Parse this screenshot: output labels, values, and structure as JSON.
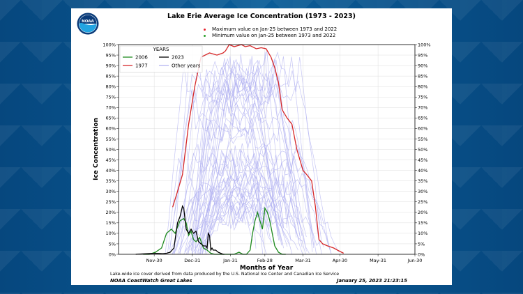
{
  "header": {
    "title": "Lake Erie Average Ice Concentration (1973 - 2023)",
    "legend_max": "Maximum value on Jan-25 between 1973 and 2022",
    "legend_min": "Minimum  value on Jan-25 between 1973 and 2022",
    "max_dot_color": "#e8202a",
    "min_dot_color": "#2ca02c"
  },
  "footer": {
    "note": "Lake-wide ice cover derived from data produced by the U.S. National Ice Center and Canadian Ice Service",
    "source": "NOAA CoastWatch Great Lakes",
    "timestamp": "January 25, 2023 21:23:15"
  },
  "logo": {
    "text": "NOAA",
    "icon": "noaa-logo-icon"
  },
  "chart_data": {
    "type": "line",
    "title": "Lake Erie Average Ice Concentration (1973 - 2023)",
    "xlabel": "Months of Year",
    "ylabel": "Ice Concentration",
    "x_unit": "days since Nov-1 (Nov-30 = 29)",
    "x_ticks": [
      {
        "x": 29,
        "label": "Nov-30"
      },
      {
        "x": 60,
        "label": "Dec-31"
      },
      {
        "x": 91,
        "label": "Jan-31"
      },
      {
        "x": 119,
        "label": "Feb-28"
      },
      {
        "x": 150,
        "label": "Mar-31"
      },
      {
        "x": 180,
        "label": "Apr-30"
      },
      {
        "x": 211,
        "label": "May-31"
      },
      {
        "x": 241,
        "label": "Jun-30"
      }
    ],
    "xlim": [
      0,
      241
    ],
    "ylim": [
      0,
      100
    ],
    "y_ticks": [
      "0%",
      "5%",
      "10%",
      "15%",
      "20%",
      "25%",
      "30%",
      "35%",
      "40%",
      "45%",
      "50%",
      "55%",
      "60%",
      "65%",
      "70%",
      "75%",
      "80%",
      "85%",
      "90%",
      "95%",
      "100%"
    ],
    "grid": true,
    "legend": {
      "title": "YEARS",
      "position": "top-left",
      "entries": [
        {
          "label": "2006",
          "color": "#1e8a1e"
        },
        {
          "label": "2023",
          "color": "#000000"
        },
        {
          "label": "1977",
          "color": "#d62728"
        },
        {
          "label": "Other years",
          "color": "#b3b3f2"
        }
      ]
    },
    "series": [
      {
        "name": "1977",
        "color": "#d62728",
        "x": [
          44,
          48,
          52,
          57,
          62,
          67,
          74,
          80,
          85,
          87,
          90,
          94,
          97,
          100,
          103,
          107,
          112,
          116,
          120,
          124,
          127,
          130,
          133,
          137,
          141,
          145,
          150,
          153,
          157,
          160,
          163,
          166,
          170,
          175,
          178,
          183
        ],
        "y": [
          22.5,
          30,
          38,
          62,
          80,
          94,
          96,
          95,
          96,
          97,
          100,
          99,
          99.5,
          100,
          99,
          99.5,
          98,
          98.5,
          98,
          94,
          89,
          82,
          69,
          65,
          62,
          50,
          40,
          38,
          35,
          23,
          7,
          5,
          4,
          3,
          2,
          0.5
        ]
      },
      {
        "name": "2006",
        "color": "#1e8a1e",
        "x": [
          20,
          25,
          30,
          35,
          39,
          43,
          46,
          50,
          53,
          55,
          57,
          59,
          61,
          63,
          66,
          69,
          72,
          75,
          78,
          82,
          86,
          90,
          94,
          98,
          101,
          104,
          107,
          109,
          111,
          113,
          115,
          117,
          119,
          121,
          123,
          125,
          127,
          130,
          133,
          136
        ],
        "y": [
          0,
          0,
          1,
          3,
          10,
          12,
          10,
          16,
          17,
          15,
          9,
          11,
          7,
          6,
          8,
          3,
          2,
          0.5,
          0,
          0,
          0,
          0,
          0,
          1,
          0,
          0,
          2,
          10,
          16,
          20,
          16,
          12,
          22,
          20,
          16,
          10,
          4,
          1,
          0,
          0
        ]
      },
      {
        "name": "2023",
        "color": "#000000",
        "x": [
          14,
          20,
          30,
          36,
          39,
          42,
          45,
          48,
          50,
          52,
          53,
          55,
          57,
          59,
          61,
          63,
          65,
          67,
          69,
          71,
          72,
          73,
          74,
          75,
          76,
          77,
          79,
          81,
          83,
          85,
          86
        ],
        "y": [
          0,
          0.2,
          0.5,
          0.3,
          0.5,
          1,
          3,
          15,
          18,
          23,
          22,
          12,
          10,
          12,
          10,
          11,
          6,
          5,
          4,
          4,
          3,
          10,
          9,
          2,
          3,
          2,
          2,
          1,
          0.5,
          0,
          0
        ]
      }
    ],
    "other_years_count": 46,
    "other_years_color": "#b3b3f2"
  }
}
